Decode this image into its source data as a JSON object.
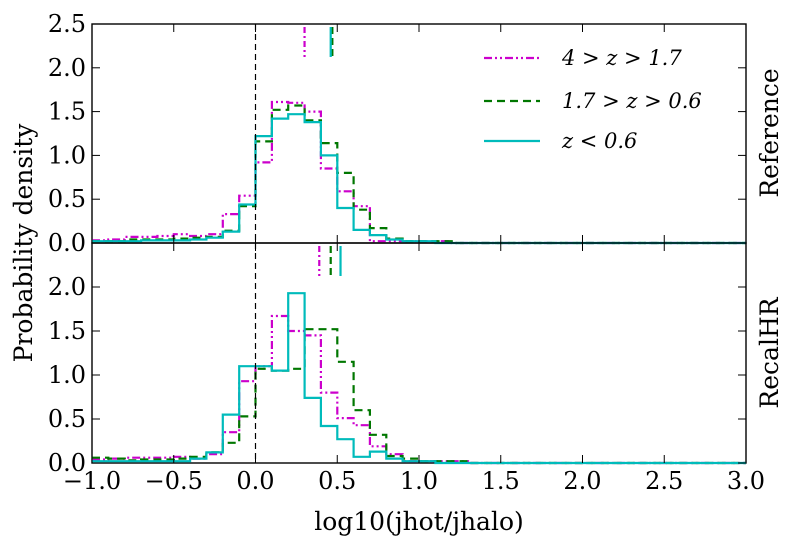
{
  "chart_data": [
    {
      "type": "step-histogram",
      "panel_label": "Reference",
      "ylabel": "Probability density",
      "xlabel": "log10(jhot/jhalo)",
      "xlim": [
        -1.0,
        3.0
      ],
      "ylim": [
        0.0,
        2.5
      ],
      "x_ticks": [
        "−1.0",
        "−0.5",
        "0.0",
        "0.5",
        "1.0",
        "1.5",
        "2.0",
        "2.5",
        "3.0"
      ],
      "y_ticks": [
        "0.0",
        "0.5",
        "1.0",
        "1.5",
        "2.0",
        "2.5"
      ],
      "reference_line_x": 0.0,
      "bin_edges": [
        -1.0,
        -0.9,
        -0.8,
        -0.7,
        -0.6,
        -0.5,
        -0.4,
        -0.3,
        -0.2,
        -0.1,
        0.0,
        0.1,
        0.2,
        0.3,
        0.4,
        0.5,
        0.6,
        0.7,
        0.8,
        0.9,
        1.0,
        1.1,
        1.2,
        1.3,
        1.4,
        1.5,
        3.0
      ],
      "legend_position": "top-right",
      "series": [
        {
          "name": "4 > z > 1.7",
          "color": "#cc00cc",
          "style": "dash-dot",
          "values": [
            0.03,
            0.04,
            0.07,
            0.07,
            0.08,
            0.1,
            0.08,
            0.1,
            0.33,
            0.54,
            0.92,
            1.61,
            1.6,
            1.5,
            0.85,
            0.59,
            0.42,
            0.02,
            0.02,
            0.02,
            0.02,
            0.02,
            0.0,
            0.0,
            0.0,
            0.0
          ],
          "median_marker": 0.3
        },
        {
          "name": "1.7 > z > 0.6",
          "color": "#007700",
          "style": "dashed",
          "values": [
            0.02,
            0.02,
            0.04,
            0.04,
            0.04,
            0.05,
            0.06,
            0.07,
            0.14,
            0.42,
            1.16,
            1.52,
            1.57,
            1.4,
            1.14,
            0.8,
            0.38,
            0.17,
            0.05,
            0.02,
            0.02,
            0.02,
            0.0,
            0.0,
            0.0,
            0.0
          ],
          "median_marker": 0.47
        },
        {
          "name": "z < 0.6",
          "color": "#00bbbb",
          "style": "solid",
          "values": [
            0.02,
            0.02,
            0.02,
            0.03,
            0.03,
            0.03,
            0.04,
            0.06,
            0.13,
            0.44,
            1.22,
            1.42,
            1.47,
            1.38,
            1.0,
            0.4,
            0.15,
            0.09,
            0.04,
            0.02,
            0.02,
            0.0,
            0.0,
            0.0,
            0.0,
            0.0
          ],
          "median_marker": 0.46
        }
      ]
    },
    {
      "type": "step-histogram",
      "panel_label": "RecalHR",
      "ylabel": "Probability density",
      "xlabel": "log10(jhot/jhalo)",
      "xlim": [
        -1.0,
        3.0
      ],
      "ylim": [
        0.0,
        2.5
      ],
      "x_ticks": [
        "−1.0",
        "−0.5",
        "0.0",
        "0.5",
        "1.0",
        "1.5",
        "2.0",
        "2.5",
        "3.0"
      ],
      "y_ticks": [
        "0.0",
        "0.5",
        "1.0",
        "1.5",
        "2.0"
      ],
      "reference_line_x": 0.0,
      "bin_edges": [
        -1.0,
        -0.9,
        -0.8,
        -0.7,
        -0.6,
        -0.5,
        -0.4,
        -0.3,
        -0.2,
        -0.1,
        0.0,
        0.1,
        0.2,
        0.3,
        0.4,
        0.5,
        0.6,
        0.7,
        0.8,
        0.9,
        1.0,
        1.1,
        1.2,
        1.3,
        1.4,
        1.5,
        3.0
      ],
      "series": [
        {
          "name": "4 > z > 1.7",
          "color": "#cc00cc",
          "style": "dash-dot",
          "values": [
            0.04,
            0.05,
            0.06,
            0.06,
            0.06,
            0.07,
            0.05,
            0.1,
            0.35,
            0.93,
            1.1,
            1.67,
            1.5,
            1.45,
            0.8,
            0.51,
            0.43,
            0.19,
            0.1,
            0.02,
            0.02,
            0.02,
            0.02,
            0.0,
            0.0,
            0.0
          ],
          "median_marker": 0.39
        },
        {
          "name": "1.7 > z > 0.6",
          "color": "#007700",
          "style": "dashed",
          "values": [
            0.06,
            0.05,
            0.03,
            0.04,
            0.04,
            0.05,
            0.07,
            0.12,
            0.23,
            0.53,
            1.07,
            1.05,
            1.07,
            1.52,
            1.52,
            1.15,
            0.6,
            0.32,
            0.08,
            0.05,
            0.02,
            0.02,
            0.02,
            0.0,
            0.0,
            0.0
          ],
          "median_marker": 0.46
        },
        {
          "name": "z < 0.6",
          "color": "#00bbbb",
          "style": "solid",
          "values": [
            0.02,
            0.02,
            0.02,
            0.02,
            0.02,
            0.02,
            0.05,
            0.12,
            0.55,
            1.1,
            1.1,
            1.05,
            1.93,
            0.74,
            0.42,
            0.27,
            0.07,
            0.13,
            0.05,
            0.02,
            0.02,
            0.0,
            0.0,
            0.0,
            0.0,
            0.0
          ],
          "median_marker": 0.52
        }
      ]
    }
  ]
}
